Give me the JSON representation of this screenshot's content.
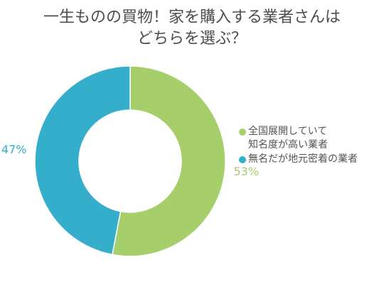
{
  "chart_data": {
    "type": "pie",
    "title_lines": [
      "一生ものの買物！家を購入する業者さんは",
      "どちらを選ぶ？"
    ],
    "categories": [
      "全国展開していて\n知名度が高い業者",
      "無名だが地元密着の業者"
    ],
    "values": [
      53,
      47
    ],
    "value_labels": [
      "53%",
      "47%"
    ],
    "colors": [
      "#a6cf6b",
      "#35aecb"
    ],
    "donut": true,
    "legend_position": "right"
  }
}
